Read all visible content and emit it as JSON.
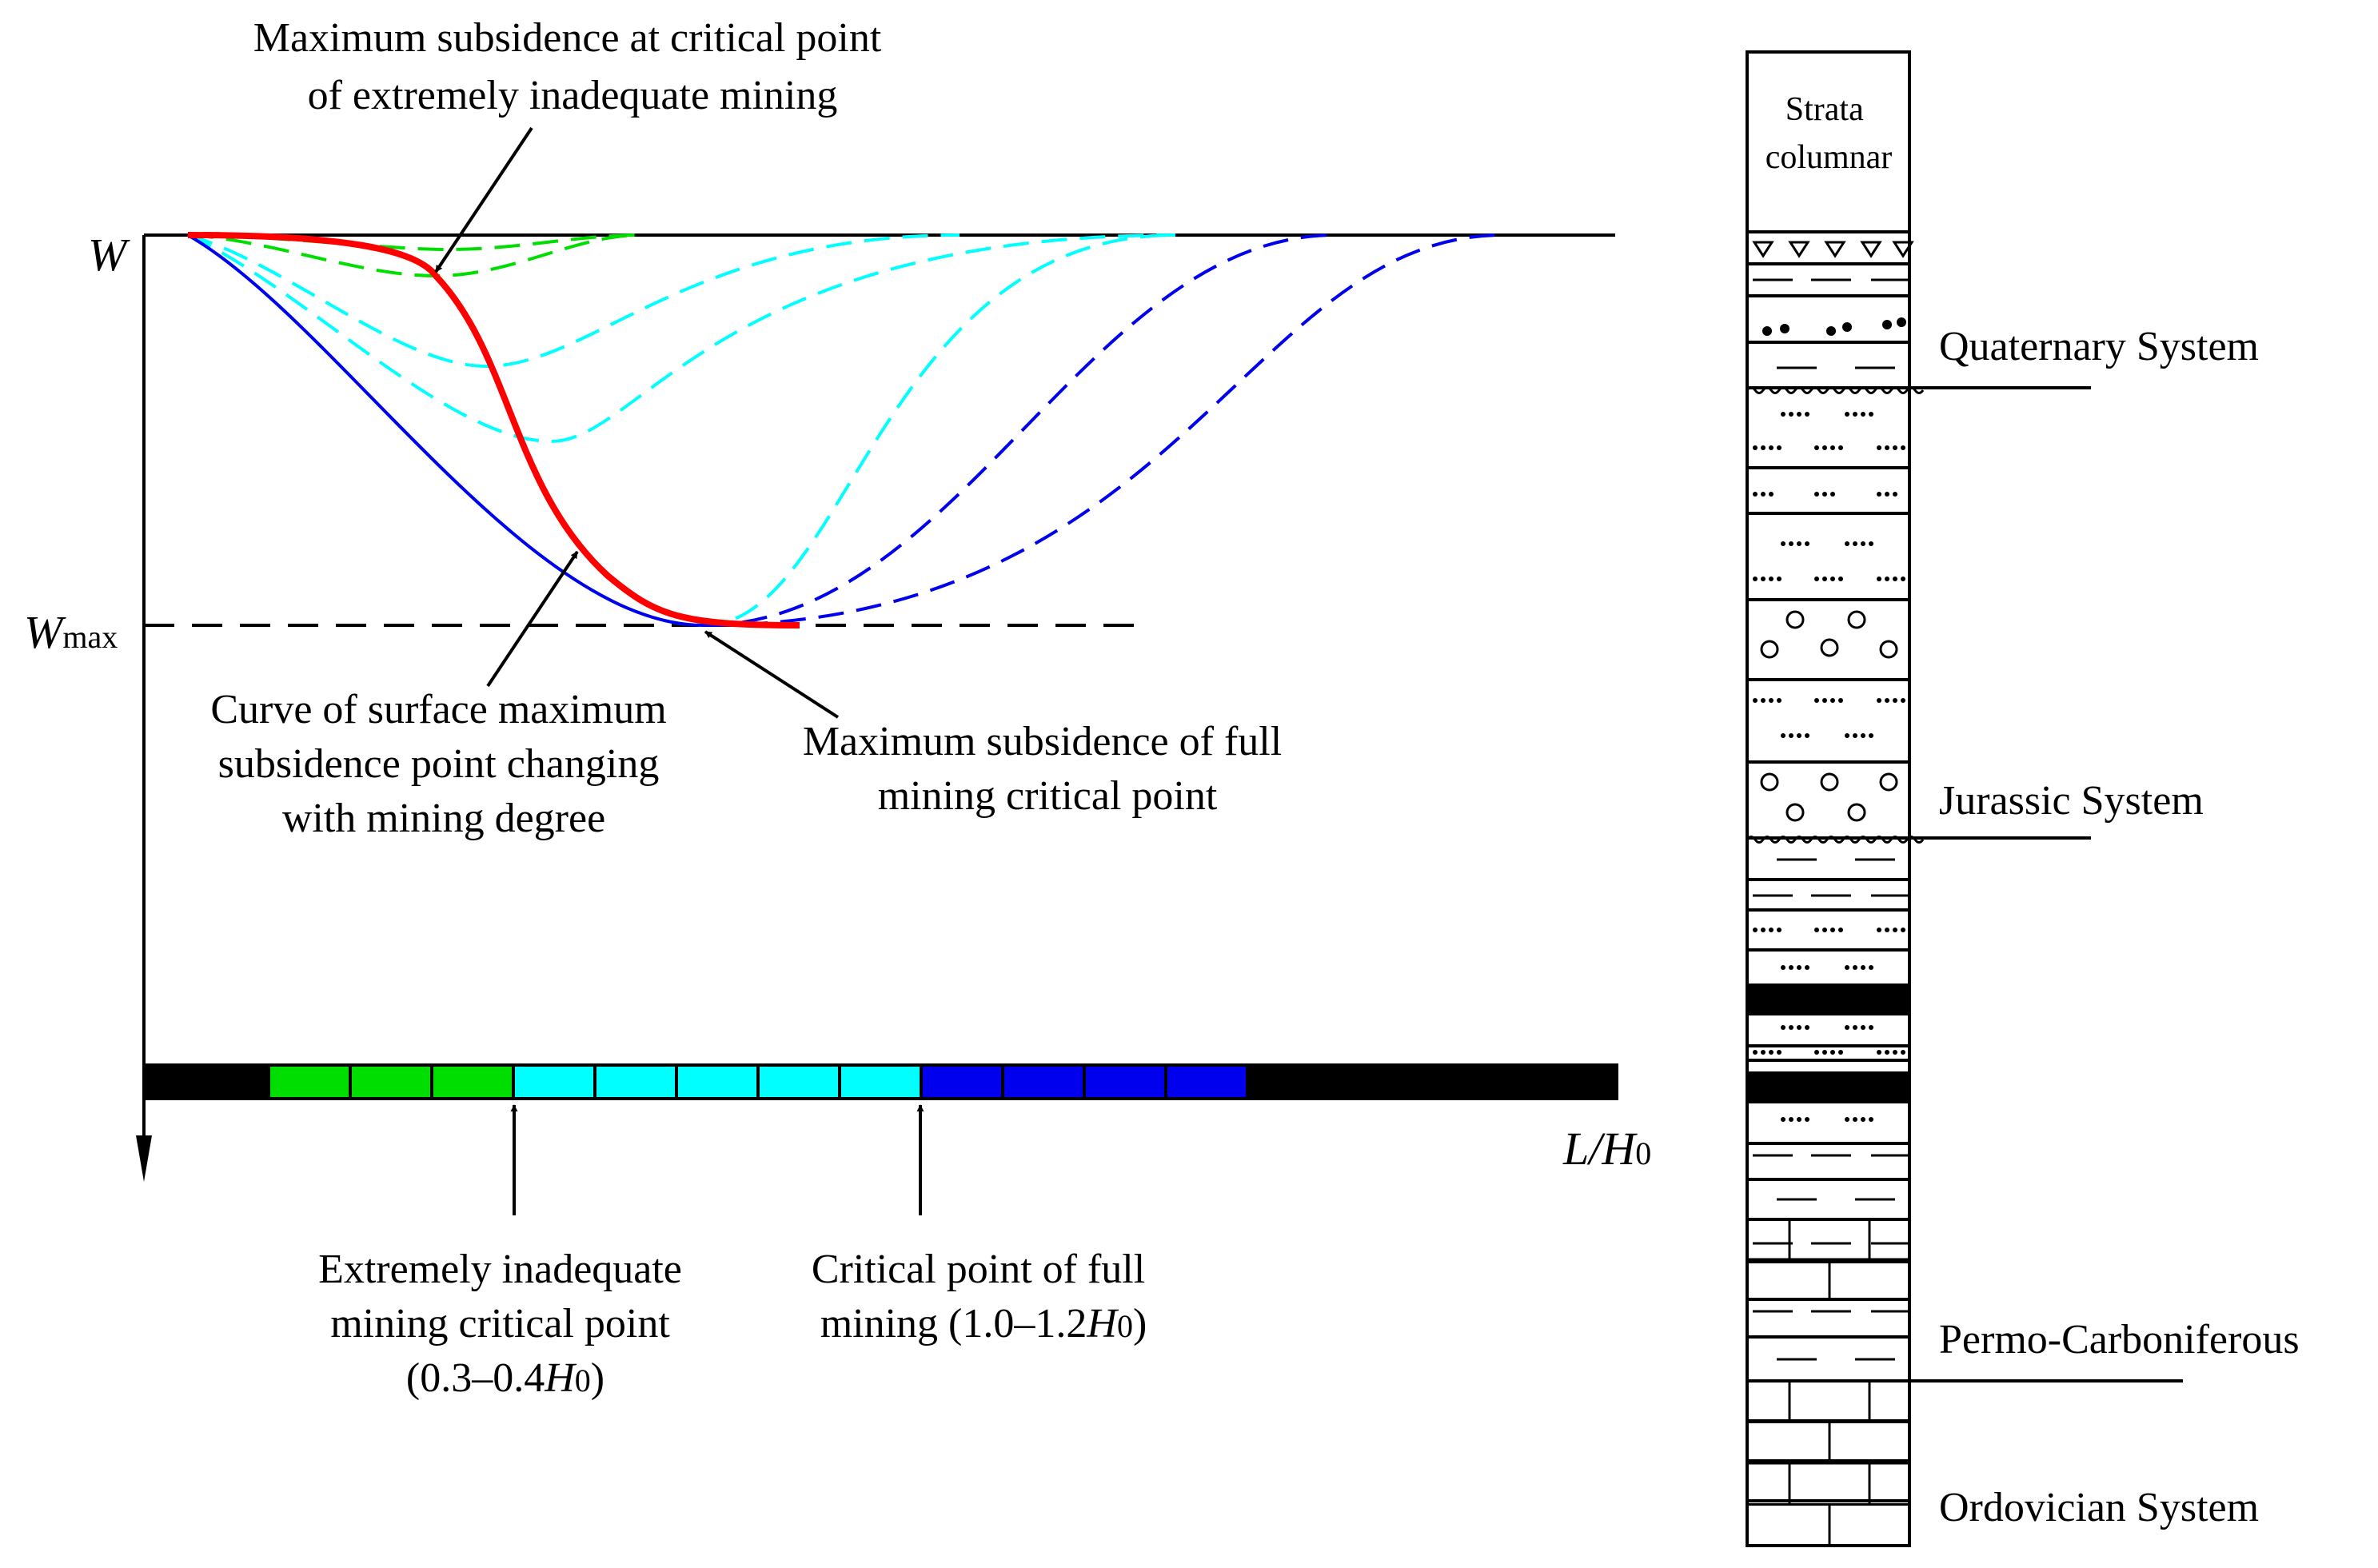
{
  "subsidence_diagram": {
    "y_axis_label": "W",
    "wmax_label": "W",
    "wmax_subscript": "max",
    "x_axis_label_main": "L/H",
    "x_axis_label_subscript": "0",
    "annotation_top": [
      "Maximum subsidence at critical point",
      "of extremely inadequate mining"
    ],
    "annotation_curve": [
      "Curve of surface maximum",
      "subsidence point changing",
      "with mining degree"
    ],
    "annotation_full": [
      "Maximum subsidence of full",
      "mining critical point"
    ],
    "label_inadequate": {
      "line1": "Extremely inadequate",
      "line2": "mining critical point",
      "line3_pre": "(0.3–0.4",
      "line3_var": "H",
      "line3_sub": "0",
      "line3_post": ")"
    },
    "label_full": {
      "line1": "Critical point of full",
      "line2_pre": "mining (1.0–1.2",
      "line2_var": "H",
      "line2_sub": "0",
      "line2_post": ")"
    },
    "colors": {
      "extremely_inadequate": "#00dd00",
      "inadequate": "#00ffff",
      "near_full": "#0000ee",
      "max_point_curve": "#ff0000",
      "axis": "#000000"
    },
    "mining_degree_bar": {
      "segments": [
        "black",
        "green",
        "green",
        "green",
        "cyan",
        "cyan",
        "cyan",
        "cyan",
        "cyan",
        "blue",
        "blue",
        "blue",
        "blue",
        "black"
      ]
    }
  },
  "strata_column": {
    "title_line1": "Strata",
    "title_line2": "columnar",
    "systems": [
      "Quaternary System",
      "Jurassic System",
      "Permo-Carboniferous",
      "Ordovician System"
    ]
  }
}
